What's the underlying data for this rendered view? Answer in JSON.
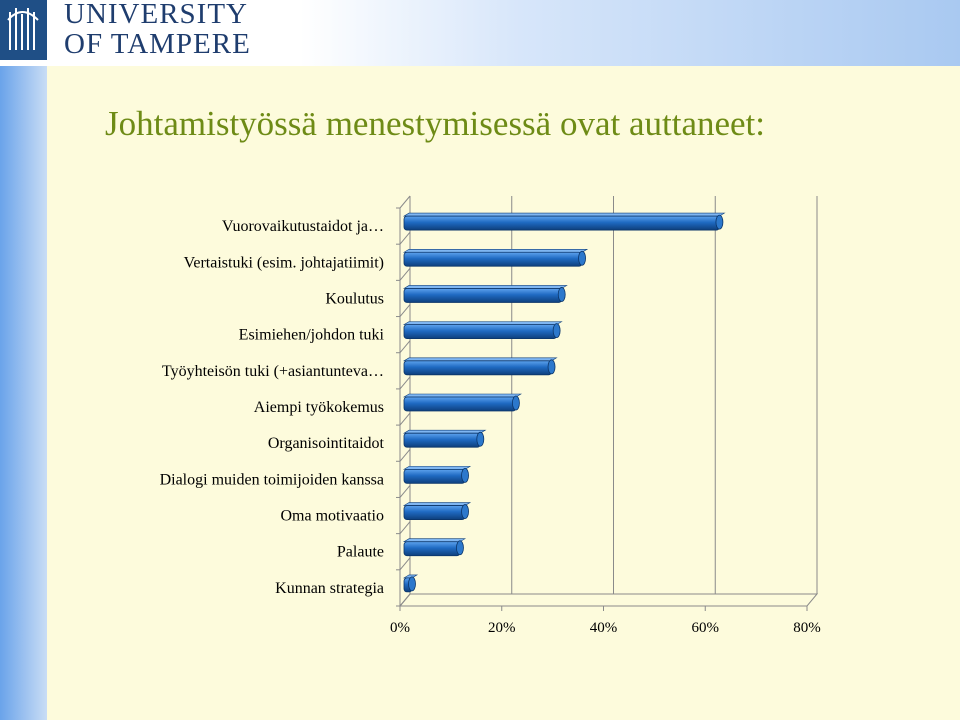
{
  "header": {
    "logo_line1": "UNIVERSITY",
    "logo_line2": "OF TAMPERE"
  },
  "slide": {
    "title": "Johtamistyössä menestymisessä ovat auttaneet:"
  },
  "colors": {
    "bar": "#1f6ac2",
    "title": "#6e8b16",
    "logo": "#1f4f86",
    "band": "#6aa3ea"
  },
  "chart_data": {
    "type": "bar",
    "orientation": "horizontal",
    "categories": [
      "Vuorovaikutustaidot ja…",
      "Vertaistuki (esim. johtajatiimit)",
      "Koulutus",
      "Esimiehen/johdon tuki",
      "Työyhteisön tuki (+asiantunteva…",
      "Aiempi työkokemus",
      "Organisointitaidot",
      "Dialogi muiden toimijoiden kanssa",
      "Oma motivaatio",
      "Palaute",
      "Kunnan strategia"
    ],
    "values": [
      62,
      35,
      31,
      30,
      29,
      22,
      15,
      12,
      12,
      11,
      1
    ],
    "xlim": [
      0,
      80
    ],
    "xticks": [
      "0%",
      "20%",
      "40%",
      "60%",
      "80%"
    ],
    "unit": "%",
    "grid": true,
    "legend": false
  }
}
